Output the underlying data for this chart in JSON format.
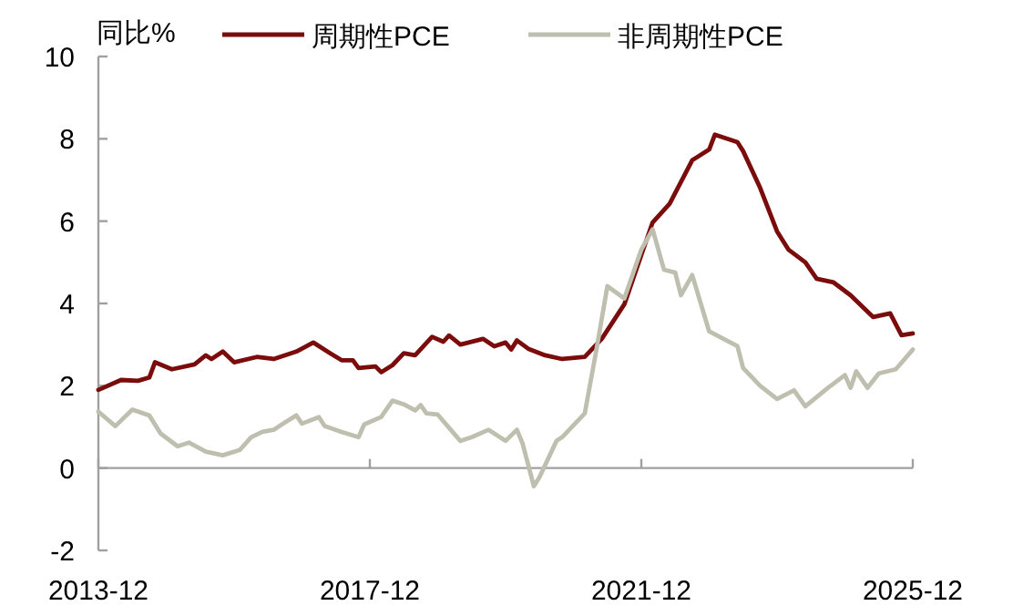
{
  "chart_data": {
    "type": "line",
    "ylabel": "同比%",
    "legend": "top",
    "xlim": [
      "2013-12",
      "2025-12"
    ],
    "xticks": [
      "2013-12",
      "2017-12",
      "2021-12",
      "2025-12"
    ],
    "ylim": [
      -2,
      10
    ],
    "yticks": [
      -2,
      0,
      2,
      4,
      6,
      8,
      10
    ],
    "series": [
      {
        "name": "周期性PCE",
        "color": "#7b0c0c",
        "x": [
          "2013-12",
          "2014-04",
          "2014-07",
          "2014-09",
          "2014-10",
          "2015-01",
          "2015-05",
          "2015-07",
          "2015-08",
          "2015-10",
          "2015-12",
          "2016-04",
          "2016-07",
          "2016-11",
          "2017-02",
          "2017-05",
          "2017-07",
          "2017-09",
          "2017-10",
          "2018-01",
          "2018-02",
          "2018-04",
          "2018-06",
          "2018-08",
          "2018-11",
          "2019-01",
          "2019-02",
          "2019-04",
          "2019-08",
          "2019-10",
          "2019-12",
          "2020-01",
          "2020-02",
          "2020-04",
          "2020-07",
          "2020-10",
          "2021-02",
          "2021-05",
          "2021-09",
          "2021-12",
          "2022-02",
          "2022-05",
          "2022-09",
          "2022-12",
          "2023-01",
          "2023-05",
          "2023-06",
          "2023-09",
          "2023-12",
          "2024-02",
          "2024-05",
          "2024-07",
          "2024-10",
          "2025-01",
          "2025-05",
          "2025-08",
          "2025-10",
          "2025-12"
        ],
        "values": [
          1.9,
          2.14,
          2.12,
          2.2,
          2.57,
          2.4,
          2.52,
          2.74,
          2.65,
          2.83,
          2.57,
          2.7,
          2.65,
          2.83,
          3.05,
          2.79,
          2.62,
          2.62,
          2.43,
          2.47,
          2.33,
          2.5,
          2.79,
          2.74,
          3.19,
          3.07,
          3.22,
          3.0,
          3.14,
          2.96,
          3.05,
          2.88,
          3.1,
          2.9,
          2.74,
          2.65,
          2.7,
          3.14,
          3.98,
          5.18,
          5.97,
          6.42,
          7.48,
          7.74,
          8.1,
          7.92,
          7.7,
          6.81,
          5.75,
          5.31,
          5.0,
          4.6,
          4.51,
          4.2,
          3.67,
          3.76,
          3.23,
          3.27
        ]
      },
      {
        "name": "非周期性PCE",
        "color": "#bfbfb0",
        "x": [
          "2013-12",
          "2014-03",
          "2014-06",
          "2014-09",
          "2014-11",
          "2015-02",
          "2015-04",
          "2015-07",
          "2015-10",
          "2016-01",
          "2016-03",
          "2016-05",
          "2016-07",
          "2016-09",
          "2016-11",
          "2016-12",
          "2017-03",
          "2017-04",
          "2017-07",
          "2017-10",
          "2017-11",
          "2018-02",
          "2018-04",
          "2018-06",
          "2018-08",
          "2018-09",
          "2018-10",
          "2018-12",
          "2019-04",
          "2019-06",
          "2019-09",
          "2019-12",
          "2020-02",
          "2020-03",
          "2020-05",
          "2020-06",
          "2020-09",
          "2020-10",
          "2021-02",
          "2021-04",
          "2021-06",
          "2021-09",
          "2021-12",
          "2022-02",
          "2022-04",
          "2022-06",
          "2022-07",
          "2022-09",
          "2022-12",
          "2023-05",
          "2023-06",
          "2023-09",
          "2023-12",
          "2024-03",
          "2024-05",
          "2024-09",
          "2024-12",
          "2025-01",
          "2025-02",
          "2025-04",
          "2025-06",
          "2025-09",
          "2025-12"
        ],
        "values": [
          1.37,
          1.02,
          1.42,
          1.28,
          0.84,
          0.53,
          0.62,
          0.4,
          0.31,
          0.44,
          0.75,
          0.88,
          0.93,
          1.11,
          1.28,
          1.08,
          1.24,
          1.02,
          0.88,
          0.75,
          1.06,
          1.24,
          1.64,
          1.55,
          1.4,
          1.53,
          1.33,
          1.3,
          0.66,
          0.75,
          0.93,
          0.66,
          0.93,
          0.6,
          -0.44,
          -0.22,
          0.66,
          0.75,
          1.33,
          2.83,
          4.42,
          4.12,
          5.31,
          5.8,
          4.82,
          4.75,
          4.2,
          4.69,
          3.32,
          2.96,
          2.43,
          2.0,
          1.68,
          1.89,
          1.5,
          1.95,
          2.26,
          1.95,
          2.35,
          1.95,
          2.3,
          2.4,
          2.88
        ]
      }
    ]
  }
}
